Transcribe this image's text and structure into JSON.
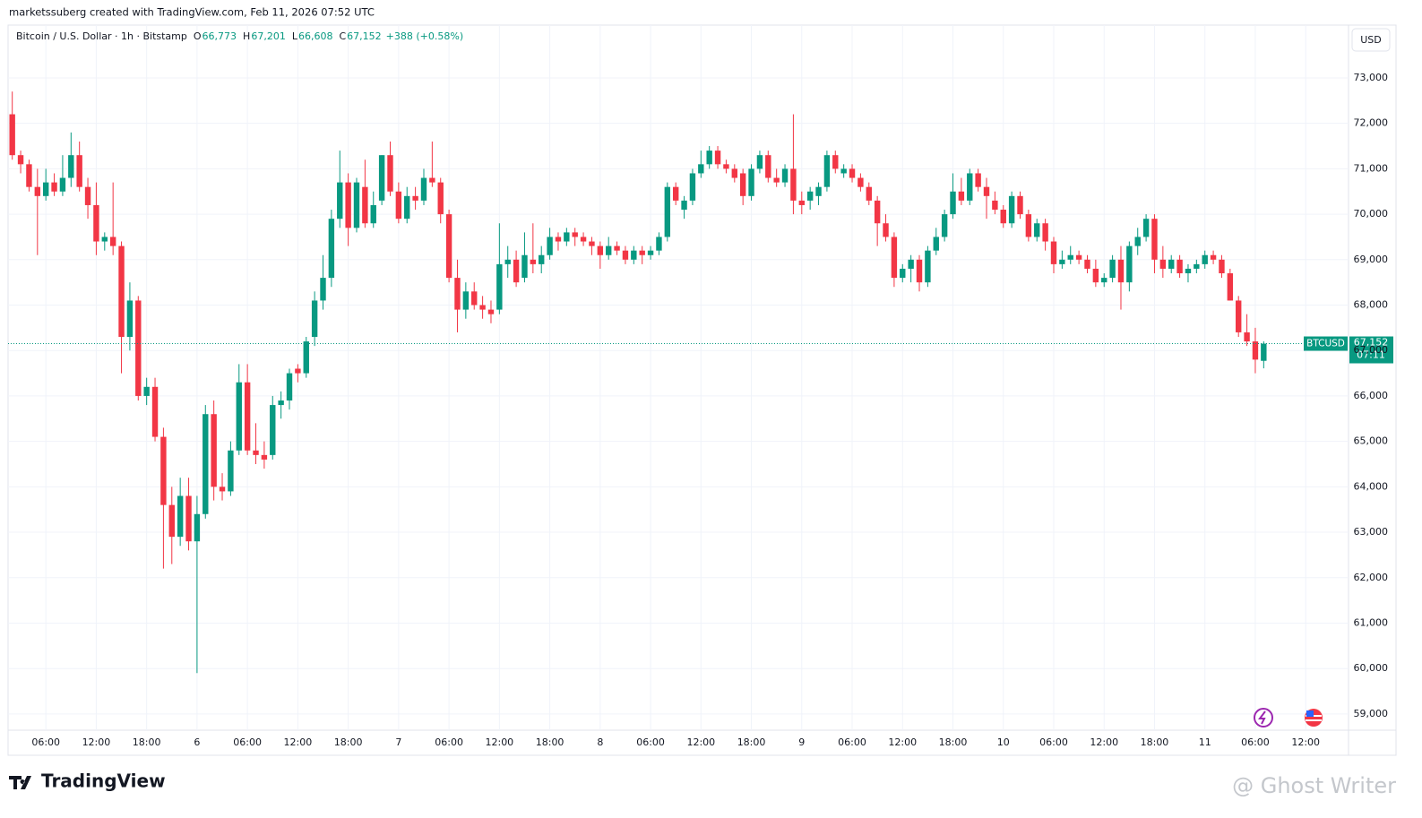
{
  "header": {
    "attribution": "marketssuberg created with TradingView.com, Feb 11, 2026 07:52 UTC",
    "brand": "TradingView",
    "watermark": "@ Ghost Writer"
  },
  "chart_data": {
    "type": "candlestick",
    "title": "Bitcoin / U.S. Dollar · 1h · Bitstamp",
    "header_values": [
      {
        "key": "O",
        "label": "66,773"
      },
      {
        "key": "H",
        "label": "67,201"
      },
      {
        "key": "L",
        "label": "66,608"
      },
      {
        "key": "C",
        "label": "67,152"
      },
      {
        "key": "",
        "label": "+388 (+0.58%)"
      }
    ],
    "currency": "USD",
    "symbol": "BTCUSD",
    "last_price": {
      "value": 67152,
      "label": "67,152"
    },
    "countdown": "07:11",
    "up_color": "#089981",
    "down_color": "#f23645",
    "grid": true,
    "ylim": [
      58643,
      74163
    ],
    "xlim": [
      -0.5,
      159.1
    ],
    "yticks": [
      {
        "value": 59000,
        "label": "59,000"
      },
      {
        "value": 60000,
        "label": "60,000"
      },
      {
        "value": 61000,
        "label": "61,000"
      },
      {
        "value": 62000,
        "label": "62,000"
      },
      {
        "value": 63000,
        "label": "63,000"
      },
      {
        "value": 64000,
        "label": "64,000"
      },
      {
        "value": 65000,
        "label": "65,000"
      },
      {
        "value": 66000,
        "label": "66,000"
      },
      {
        "value": 67000,
        "label": "67,000"
      },
      {
        "value": 68000,
        "label": "68,000"
      },
      {
        "value": 69000,
        "label": "69,000"
      },
      {
        "value": 70000,
        "label": "70,000"
      },
      {
        "value": 71000,
        "label": "71,000"
      },
      {
        "value": 72000,
        "label": "72,000"
      },
      {
        "value": 73000,
        "label": "73,000"
      }
    ],
    "xticks": [
      {
        "value": 4,
        "label": "06:00"
      },
      {
        "value": 10,
        "label": "12:00"
      },
      {
        "value": 16,
        "label": "18:00"
      },
      {
        "value": 22,
        "label": "6"
      },
      {
        "value": 28,
        "label": "06:00"
      },
      {
        "value": 34,
        "label": "12:00"
      },
      {
        "value": 40,
        "label": "18:00"
      },
      {
        "value": 46,
        "label": "7"
      },
      {
        "value": 52,
        "label": "06:00"
      },
      {
        "value": 58,
        "label": "12:00"
      },
      {
        "value": 64,
        "label": "18:00"
      },
      {
        "value": 70,
        "label": "8"
      },
      {
        "value": 76,
        "label": "06:00"
      },
      {
        "value": 82,
        "label": "12:00"
      },
      {
        "value": 88,
        "label": "18:00"
      },
      {
        "value": 94,
        "label": "9"
      },
      {
        "value": 100,
        "label": "06:00"
      },
      {
        "value": 106,
        "label": "12:00"
      },
      {
        "value": 112,
        "label": "18:00"
      },
      {
        "value": 118,
        "label": "10"
      },
      {
        "value": 124,
        "label": "06:00"
      },
      {
        "value": 130,
        "label": "12:00"
      },
      {
        "value": 136,
        "label": "18:00"
      },
      {
        "value": 142,
        "label": "11"
      },
      {
        "value": 148,
        "label": "06:00"
      },
      {
        "value": 154,
        "label": "12:00"
      }
    ],
    "ohlc": [
      [
        72200,
        72700,
        71200,
        71300
      ],
      [
        71300,
        71400,
        70900,
        71100
      ],
      [
        71100,
        71200,
        70500,
        70600
      ],
      [
        70600,
        71000,
        69100,
        70400
      ],
      [
        70400,
        71000,
        70300,
        70700
      ],
      [
        70700,
        70900,
        70400,
        70500
      ],
      [
        70500,
        71300,
        70400,
        70800
      ],
      [
        70800,
        71800,
        70600,
        71300
      ],
      [
        71300,
        71600,
        70500,
        70600
      ],
      [
        70600,
        70800,
        69900,
        70200
      ],
      [
        70200,
        70700,
        69100,
        69400
      ],
      [
        69400,
        69600,
        69200,
        69500
      ],
      [
        69500,
        70700,
        69100,
        69300
      ],
      [
        69300,
        69400,
        66500,
        67300
      ],
      [
        67300,
        68500,
        67000,
        68100
      ],
      [
        68100,
        68200,
        65900,
        66000
      ],
      [
        66000,
        66400,
        65800,
        66200
      ],
      [
        66200,
        66400,
        65000,
        65100
      ],
      [
        65100,
        65300,
        62200,
        63600
      ],
      [
        63600,
        64000,
        62300,
        62900
      ],
      [
        62900,
        64200,
        62700,
        63800
      ],
      [
        63800,
        64200,
        62600,
        62800
      ],
      [
        62800,
        63800,
        59900,
        63400
      ],
      [
        63400,
        65800,
        63300,
        65600
      ],
      [
        65600,
        65900,
        63700,
        64000
      ],
      [
        64000,
        64300,
        63700,
        63900
      ],
      [
        63900,
        65000,
        63800,
        64800
      ],
      [
        64800,
        66700,
        64700,
        66300
      ],
      [
        66300,
        66700,
        64700,
        64800
      ],
      [
        64800,
        65400,
        64500,
        64700
      ],
      [
        64700,
        65000,
        64400,
        64600
      ],
      [
        64700,
        66000,
        64600,
        65800
      ],
      [
        65800,
        66100,
        65500,
        65900
      ],
      [
        65900,
        66600,
        65700,
        66500
      ],
      [
        66600,
        66700,
        66300,
        66500
      ],
      [
        66500,
        67300,
        66400,
        67200
      ],
      [
        67300,
        68300,
        67100,
        68100
      ],
      [
        68100,
        69100,
        67900,
        68600
      ],
      [
        68600,
        70100,
        68400,
        69900
      ],
      [
        69900,
        71400,
        69700,
        70700
      ],
      [
        70700,
        70900,
        69300,
        69700
      ],
      [
        69700,
        70800,
        69600,
        70700
      ],
      [
        70600,
        71200,
        69700,
        69800
      ],
      [
        69800,
        70500,
        69700,
        70200
      ],
      [
        70300,
        71300,
        70200,
        71300
      ],
      [
        71300,
        71600,
        70400,
        70500
      ],
      [
        70500,
        70700,
        69800,
        69900
      ],
      [
        69900,
        70600,
        69800,
        70400
      ],
      [
        70400,
        70600,
        70100,
        70300
      ],
      [
        70300,
        71000,
        70200,
        70800
      ],
      [
        70800,
        71600,
        70600,
        70700
      ],
      [
        70700,
        70800,
        69800,
        70000
      ],
      [
        70000,
        70100,
        68500,
        68600
      ],
      [
        68600,
        69000,
        67400,
        67900
      ],
      [
        67900,
        68500,
        67700,
        68300
      ],
      [
        68300,
        68500,
        67900,
        68000
      ],
      [
        68000,
        68200,
        67700,
        67900
      ],
      [
        67900,
        68100,
        67600,
        67800
      ],
      [
        67900,
        69800,
        67800,
        68900
      ],
      [
        68900,
        69300,
        68600,
        69000
      ],
      [
        69000,
        69200,
        68400,
        68500
      ],
      [
        68600,
        69600,
        68500,
        69100
      ],
      [
        69000,
        69800,
        68700,
        68900
      ],
      [
        68900,
        69300,
        68700,
        69100
      ],
      [
        69100,
        69700,
        69000,
        69500
      ],
      [
        69500,
        69600,
        69200,
        69400
      ],
      [
        69400,
        69700,
        69300,
        69600
      ],
      [
        69600,
        69700,
        69300,
        69500
      ],
      [
        69500,
        69600,
        69300,
        69400
      ],
      [
        69400,
        69500,
        69100,
        69300
      ],
      [
        69300,
        69400,
        68800,
        69100
      ],
      [
        69100,
        69500,
        69000,
        69300
      ],
      [
        69300,
        69400,
        69100,
        69200
      ],
      [
        69200,
        69300,
        68900,
        69000
      ],
      [
        69000,
        69300,
        68900,
        69200
      ],
      [
        69200,
        69300,
        68900,
        69100
      ],
      [
        69100,
        69300,
        69000,
        69200
      ],
      [
        69200,
        69600,
        69100,
        69500
      ],
      [
        69500,
        70700,
        69400,
        70600
      ],
      [
        70600,
        70700,
        70200,
        70300
      ],
      [
        70100,
        70400,
        69900,
        70300
      ],
      [
        70300,
        71000,
        70200,
        70900
      ],
      [
        70900,
        71400,
        70800,
        71100
      ],
      [
        71100,
        71500,
        71000,
        71400
      ],
      [
        71400,
        71500,
        71000,
        71100
      ],
      [
        71100,
        71200,
        70900,
        71000
      ],
      [
        71000,
        71100,
        70700,
        70800
      ],
      [
        70900,
        71000,
        70200,
        70400
      ],
      [
        70400,
        71100,
        70300,
        71000
      ],
      [
        71000,
        71400,
        70900,
        71300
      ],
      [
        71300,
        71400,
        70700,
        70800
      ],
      [
        70800,
        71000,
        70600,
        70700
      ],
      [
        70700,
        71100,
        70600,
        71000
      ],
      [
        71000,
        72200,
        70000,
        70300
      ],
      [
        70300,
        70500,
        70000,
        70200
      ],
      [
        70300,
        70600,
        70100,
        70500
      ],
      [
        70400,
        70700,
        70200,
        70600
      ],
      [
        70600,
        71400,
        70500,
        71300
      ],
      [
        71300,
        71400,
        70900,
        71000
      ],
      [
        70900,
        71100,
        70800,
        71000
      ],
      [
        71000,
        71100,
        70700,
        70800
      ],
      [
        70800,
        70900,
        70500,
        70600
      ],
      [
        70600,
        70700,
        70200,
        70300
      ],
      [
        70300,
        70400,
        69300,
        69800
      ],
      [
        69800,
        70000,
        69400,
        69500
      ],
      [
        69500,
        69600,
        68400,
        68600
      ],
      [
        68600,
        68900,
        68500,
        68800
      ],
      [
        68800,
        69100,
        68500,
        69000
      ],
      [
        69000,
        69100,
        68300,
        68500
      ],
      [
        68500,
        69300,
        68400,
        69200
      ],
      [
        69200,
        69700,
        69100,
        69500
      ],
      [
        69500,
        70100,
        69400,
        70000
      ],
      [
        70000,
        70900,
        69900,
        70500
      ],
      [
        70500,
        70800,
        70200,
        70300
      ],
      [
        70300,
        71000,
        70200,
        70900
      ],
      [
        70900,
        71000,
        70500,
        70600
      ],
      [
        70600,
        70800,
        69900,
        70400
      ],
      [
        70300,
        70500,
        70000,
        70100
      ],
      [
        70100,
        70200,
        69700,
        69800
      ],
      [
        69800,
        70500,
        69700,
        70400
      ],
      [
        70400,
        70500,
        69900,
        70000
      ],
      [
        70000,
        70100,
        69400,
        69500
      ],
      [
        69500,
        69900,
        69400,
        69800
      ],
      [
        69800,
        69900,
        69200,
        69400
      ],
      [
        69400,
        69500,
        68700,
        68900
      ],
      [
        68900,
        69200,
        68800,
        69000
      ],
      [
        69000,
        69300,
        68900,
        69100
      ],
      [
        69100,
        69200,
        68900,
        69000
      ],
      [
        69000,
        69100,
        68700,
        68800
      ],
      [
        68800,
        69000,
        68400,
        68500
      ],
      [
        68500,
        68700,
        68400,
        68600
      ],
      [
        68600,
        69100,
        68500,
        69000
      ],
      [
        69000,
        69300,
        67900,
        68500
      ],
      [
        68500,
        69400,
        68300,
        69300
      ],
      [
        69300,
        69700,
        69100,
        69500
      ],
      [
        69500,
        70000,
        69400,
        69900
      ],
      [
        69900,
        70000,
        68700,
        69000
      ],
      [
        69000,
        69300,
        68600,
        68800
      ],
      [
        68800,
        69100,
        68700,
        69000
      ],
      [
        69000,
        69100,
        68600,
        68700
      ],
      [
        68700,
        68900,
        68500,
        68800
      ],
      [
        68800,
        69000,
        68700,
        68900
      ],
      [
        68900,
        69200,
        68800,
        69100
      ],
      [
        69100,
        69200,
        68900,
        69000
      ],
      [
        69000,
        69100,
        68600,
        68700
      ],
      [
        68700,
        68800,
        68100,
        68100
      ],
      [
        68100,
        68200,
        67300,
        67400
      ],
      [
        67400,
        67800,
        67100,
        67200
      ],
      [
        67200,
        67500,
        66500,
        66800
      ],
      [
        66773,
        67201,
        66608,
        67152
      ]
    ]
  }
}
